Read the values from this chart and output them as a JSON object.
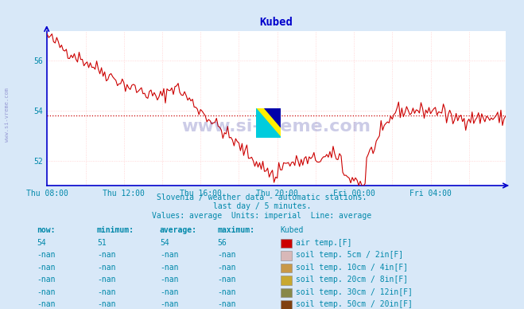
{
  "title": "Kubed",
  "title_color": "#0000cc",
  "bg_color": "#d8e8f8",
  "plot_bg_color": "#ffffff",
  "line_color": "#cc0000",
  "grid_major_color": "#ffffff",
  "grid_minor_color": "#ffcccc",
  "axis_color": "#0000cc",
  "text_color": "#0088aa",
  "ylabel_text": "www.si-vreme.com",
  "watermark_text": "www.si-vreme.com",
  "subtitle1": "Slovenia / weather data - automatic stations.",
  "subtitle2": "last day / 5 minutes.",
  "subtitle3": "Values: average  Units: imperial  Line: average",
  "xtick_labels": [
    "Thu 08:00",
    "Thu 12:00",
    "Thu 16:00",
    "Thu 20:00",
    "Fri 00:00",
    "Fri 04:00"
  ],
  "xtick_positions": [
    0,
    48,
    96,
    144,
    192,
    240
  ],
  "ytick_labels": [
    "52",
    "54",
    "56"
  ],
  "ytick_positions": [
    52,
    54,
    56
  ],
  "ylim": [
    51.0,
    57.2
  ],
  "xlim": [
    0,
    287
  ],
  "average_line_y": 53.8,
  "average_line_color": "#cc0000",
  "table_headers": [
    "now:",
    "minimum:",
    "average:",
    "maximum:",
    "Kubed"
  ],
  "table_row1": [
    "54",
    "51",
    "54",
    "56"
  ],
  "table_row1_label": "air temp.[F]",
  "table_row1_color": "#cc0000",
  "table_row2_label": "soil temp. 5cm / 2in[F]",
  "table_row2_color": "#d8b8b8",
  "table_row3_label": "soil temp. 10cm / 4in[F]",
  "table_row3_color": "#c89848",
  "table_row4_label": "soil temp. 20cm / 8in[F]",
  "table_row4_color": "#c8a830",
  "table_row5_label": "soil temp. 30cm / 12in[F]",
  "table_row5_color": "#888848",
  "table_row6_label": "soil temp. 50cm / 20in[F]",
  "table_row6_color": "#804010",
  "nan_val": "-nan"
}
